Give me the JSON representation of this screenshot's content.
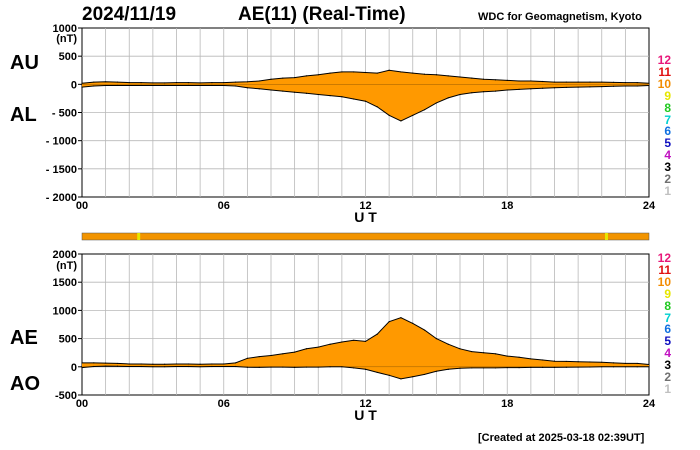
{
  "header": {
    "date": "2024/11/19",
    "title": "AE(11) (Real-Time)",
    "institution": "WDC for Geomagnetism, Kyoto"
  },
  "footer": {
    "created": "[Created at 2025-03-18 02:39UT]"
  },
  "panel_labels": {
    "au": "AU",
    "al": "AL",
    "ae": "AE",
    "ao": "AO"
  },
  "legend": {
    "items": [
      {
        "label": "12",
        "color": "#e8187a"
      },
      {
        "label": "11",
        "color": "#e01010"
      },
      {
        "label": "10",
        "color": "#f28c00"
      },
      {
        "label": "9",
        "color": "#e6e600"
      },
      {
        "label": "8",
        "color": "#22c922"
      },
      {
        "label": "7",
        "color": "#00d0d0"
      },
      {
        "label": "6",
        "color": "#1070e0"
      },
      {
        "label": "5",
        "color": "#1010c0"
      },
      {
        "label": "4",
        "color": "#c010c0"
      },
      {
        "label": "3",
        "color": "#000000"
      },
      {
        "label": "2",
        "color": "#707070"
      },
      {
        "label": "1",
        "color": "#c0c0c0"
      }
    ]
  },
  "colors": {
    "fill": "#ff9900",
    "outline": "#000000",
    "grid": "#b8b8b8",
    "station_bar": "#f29400",
    "station_marker": "#e6e600"
  },
  "station_bar": {
    "marker_hours": [
      2.4,
      22.2
    ]
  },
  "chart_data": [
    {
      "type": "area",
      "title": "AU / AL",
      "xlabel": "U T",
      "ylabel": "(nT)",
      "xlim": [
        0,
        24
      ],
      "ylim": [
        -2000,
        1000
      ],
      "xticks": [
        "00",
        "06",
        "12",
        "18",
        "24"
      ],
      "yticks": [
        "1000",
        "500",
        "0",
        "- 500",
        "- 1000",
        "- 1500",
        "- 2000"
      ],
      "x": [
        0,
        0.5,
        1,
        1.5,
        2,
        2.5,
        3,
        3.5,
        4,
        4.5,
        5,
        5.5,
        6,
        6.5,
        7,
        7.5,
        8,
        8.5,
        9,
        9.5,
        10,
        10.5,
        11,
        11.5,
        12,
        12.5,
        13,
        13.5,
        14,
        14.5,
        15,
        15.5,
        16,
        16.5,
        17,
        17.5,
        18,
        18.5,
        19,
        19.5,
        20,
        20.5,
        21,
        21.5,
        22,
        22.5,
        23,
        23.5,
        24
      ],
      "series": [
        {
          "name": "AU",
          "values": [
            20,
            40,
            45,
            40,
            30,
            30,
            25,
            25,
            30,
            30,
            25,
            30,
            30,
            40,
            45,
            60,
            90,
            110,
            120,
            150,
            170,
            200,
            220,
            220,
            210,
            200,
            250,
            220,
            200,
            180,
            170,
            150,
            130,
            110,
            90,
            80,
            70,
            60,
            60,
            50,
            40,
            40,
            40,
            40,
            40,
            35,
            30,
            30,
            20
          ]
        },
        {
          "name": "AL",
          "values": [
            -50,
            -30,
            -20,
            -20,
            -20,
            -20,
            -20,
            -20,
            -20,
            -20,
            -20,
            -20,
            -20,
            -30,
            -60,
            -80,
            -100,
            -120,
            -140,
            -160,
            -180,
            -200,
            -220,
            -260,
            -300,
            -400,
            -550,
            -650,
            -550,
            -450,
            -330,
            -240,
            -180,
            -150,
            -130,
            -120,
            -100,
            -90,
            -80,
            -70,
            -60,
            -55,
            -50,
            -45,
            -40,
            -35,
            -30,
            -30,
            -20
          ]
        }
      ]
    },
    {
      "type": "area",
      "title": "AE / AO",
      "xlabel": "U T",
      "ylabel": "(nT)",
      "xlim": [
        0,
        24
      ],
      "ylim": [
        -500,
        2000
      ],
      "xticks": [
        "00",
        "06",
        "12",
        "18",
        "24"
      ],
      "yticks": [
        "2000",
        "1500",
        "1000",
        "500",
        "0",
        "-500"
      ],
      "x": [
        0,
        0.5,
        1,
        1.5,
        2,
        2.5,
        3,
        3.5,
        4,
        4.5,
        5,
        5.5,
        6,
        6.5,
        7,
        7.5,
        8,
        8.5,
        9,
        9.5,
        10,
        10.5,
        11,
        11.5,
        12,
        12.5,
        13,
        13.5,
        14,
        14.5,
        15,
        15.5,
        16,
        16.5,
        17,
        17.5,
        18,
        18.5,
        19,
        19.5,
        20,
        20.5,
        21,
        21.5,
        22,
        22.5,
        23,
        23.5,
        24
      ],
      "series": [
        {
          "name": "AE",
          "values": [
            70,
            70,
            65,
            60,
            50,
            50,
            45,
            45,
            50,
            50,
            45,
            50,
            50,
            70,
            150,
            180,
            200,
            230,
            260,
            320,
            350,
            400,
            440,
            470,
            450,
            580,
            800,
            870,
            770,
            650,
            500,
            400,
            320,
            270,
            250,
            230,
            190,
            170,
            140,
            120,
            100,
            95,
            90,
            85,
            80,
            70,
            60,
            60,
            40
          ]
        },
        {
          "name": "AO",
          "values": [
            -15,
            5,
            12,
            10,
            5,
            5,
            2,
            2,
            5,
            5,
            2,
            5,
            5,
            5,
            -8,
            -10,
            -5,
            -5,
            -10,
            -5,
            -5,
            0,
            0,
            -20,
            -45,
            -100,
            -150,
            -215,
            -175,
            -135,
            -80,
            -45,
            -25,
            -20,
            -20,
            -20,
            -15,
            -15,
            -10,
            -10,
            -10,
            -8,
            -5,
            -3,
            0,
            0,
            0,
            0,
            0
          ]
        }
      ]
    }
  ]
}
